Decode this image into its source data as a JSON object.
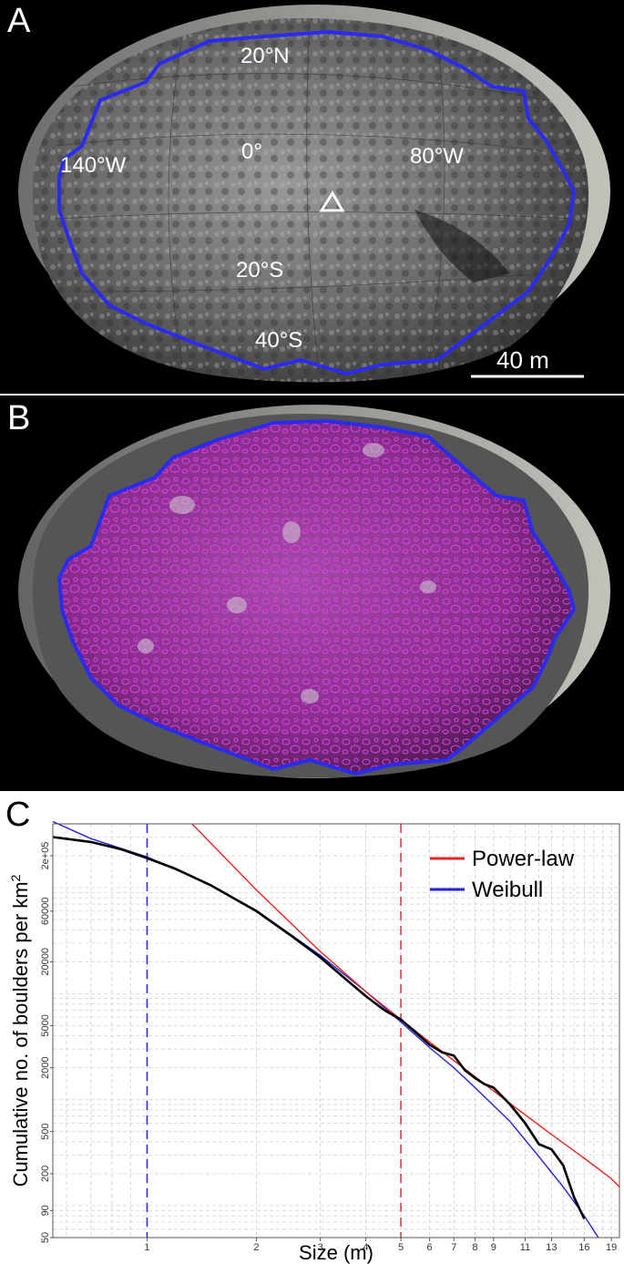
{
  "panel_a": {
    "label": "A",
    "lat_labels": [
      "20°N",
      "0°",
      "20°S",
      "40°S"
    ],
    "lon_labels": [
      "140°W",
      "80°W"
    ],
    "scale_label": "40 m"
  },
  "panel_b": {
    "label": "B"
  },
  "panel_c": {
    "label": "C",
    "legend": [
      "Power-law",
      "Weibull"
    ]
  },
  "chart_data": {
    "type": "line",
    "xlabel": "Size (m)",
    "ylabel": "Cumulative no. of boulders per km",
    "ylabel_superscript": "2",
    "x_scale": "log",
    "y_scale": "log",
    "xlim": [
      0.55,
      20
    ],
    "ylim": [
      50,
      400000
    ],
    "x_ticks": [
      1,
      2,
      3,
      4,
      5,
      6,
      7,
      8,
      9,
      11,
      13,
      16,
      19
    ],
    "y_ticks": [
      {
        "value": 200000,
        "label": "2e+05"
      },
      {
        "value": 60000,
        "label": "60000"
      },
      {
        "value": 20000,
        "label": "20000"
      },
      {
        "value": 5000,
        "label": "5000"
      },
      {
        "value": 2000,
        "label": "2000"
      },
      {
        "value": 500,
        "label": "500"
      },
      {
        "value": 200,
        "label": "200"
      },
      {
        "value": 90,
        "label": "90"
      },
      {
        "value": 50,
        "label": "50"
      }
    ],
    "vlines": [
      {
        "x": 1,
        "color": "#2b2bd9",
        "style": "dashed"
      },
      {
        "x": 5,
        "color": "#e03a3a",
        "style": "dashed"
      }
    ],
    "grid": true,
    "legend_position": "top-right",
    "series": [
      {
        "name": "data",
        "color": "#000000",
        "x": [
          0.55,
          0.7,
          0.85,
          1.0,
          1.2,
          1.5,
          2.0,
          2.5,
          3.0,
          3.5,
          4.0,
          4.5,
          5.0,
          5.5,
          6.0,
          6.5,
          7.0,
          7.5,
          8.0,
          8.5,
          9.0,
          10.0,
          11.0,
          12.0,
          13.0,
          14.0,
          15.0,
          16.0
        ],
        "y": [
          300000,
          270000,
          230000,
          190000,
          150000,
          105000,
          60000,
          35000,
          22000,
          14000,
          9500,
          7000,
          5700,
          4300,
          3300,
          2800,
          2600,
          1900,
          1600,
          1400,
          1300,
          900,
          600,
          380,
          340,
          240,
          120,
          75
        ]
      },
      {
        "name": "Power-law",
        "color": "#e8251f",
        "x": [
          1.33,
          2.0,
          3.0,
          4.0,
          5.0,
          6.0,
          8.0,
          10.0,
          13.0,
          16.0,
          19.0,
          20.0
        ],
        "y": [
          400000,
          95000,
          25000,
          10500,
          5700,
          3500,
          1650,
          920,
          470,
          280,
          180,
          150
        ]
      },
      {
        "name": "Weibull",
        "color": "#2323d6",
        "x": [
          0.55,
          0.7,
          1.0,
          1.5,
          2.0,
          3.0,
          4.0,
          5.0,
          6.0,
          7.0,
          8.0,
          10.0,
          12.0,
          14.0,
          16.0,
          17.5
        ],
        "y": [
          420000,
          290000,
          195000,
          105000,
          61000,
          23000,
          10500,
          5400,
          3100,
          2000,
          1300,
          620,
          290,
          150,
          80,
          50
        ]
      }
    ]
  }
}
